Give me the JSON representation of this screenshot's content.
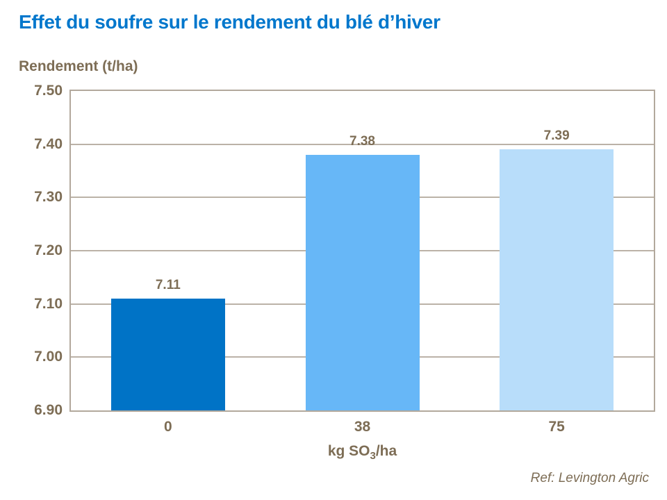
{
  "title": "Effet du soufre sur le rendement du blé d’hiver",
  "y_axis_title": "Rendement (t/ha)",
  "x_axis_title": {
    "prefix": "kg SO",
    "sub": "3",
    "suffix": "/ha"
  },
  "footer": {
    "reference": "Ref: Levington Agric"
  },
  "chart_data": {
    "type": "bar",
    "title": "Effet du soufre sur le rendement du blé d’hiver",
    "categories": [
      "0",
      "38",
      "75"
    ],
    "values": [
      7.11,
      7.38,
      7.39
    ],
    "value_labels": [
      "7.11",
      "7.38",
      "7.39"
    ],
    "bar_colors": [
      "#0073C6",
      "#67B7F7",
      "#B8DDFA"
    ],
    "xlabel": "kg SO3/ha",
    "ylabel": "Rendement (t/ha)",
    "ylim": [
      6.9,
      7.5
    ],
    "yticks": [
      "7.50",
      "7.40",
      "7.30",
      "7.20",
      "7.10",
      "7.00",
      "6.90"
    ],
    "grid": true,
    "legend_position": "none",
    "source": "Ref: Levington Agric"
  },
  "colors": {
    "title_text": "#0077CC",
    "axis_text": "#7D6D55",
    "gridline": "#BBB2A7",
    "plot_border": "#B2A89C",
    "background": "#FFFFFF"
  }
}
